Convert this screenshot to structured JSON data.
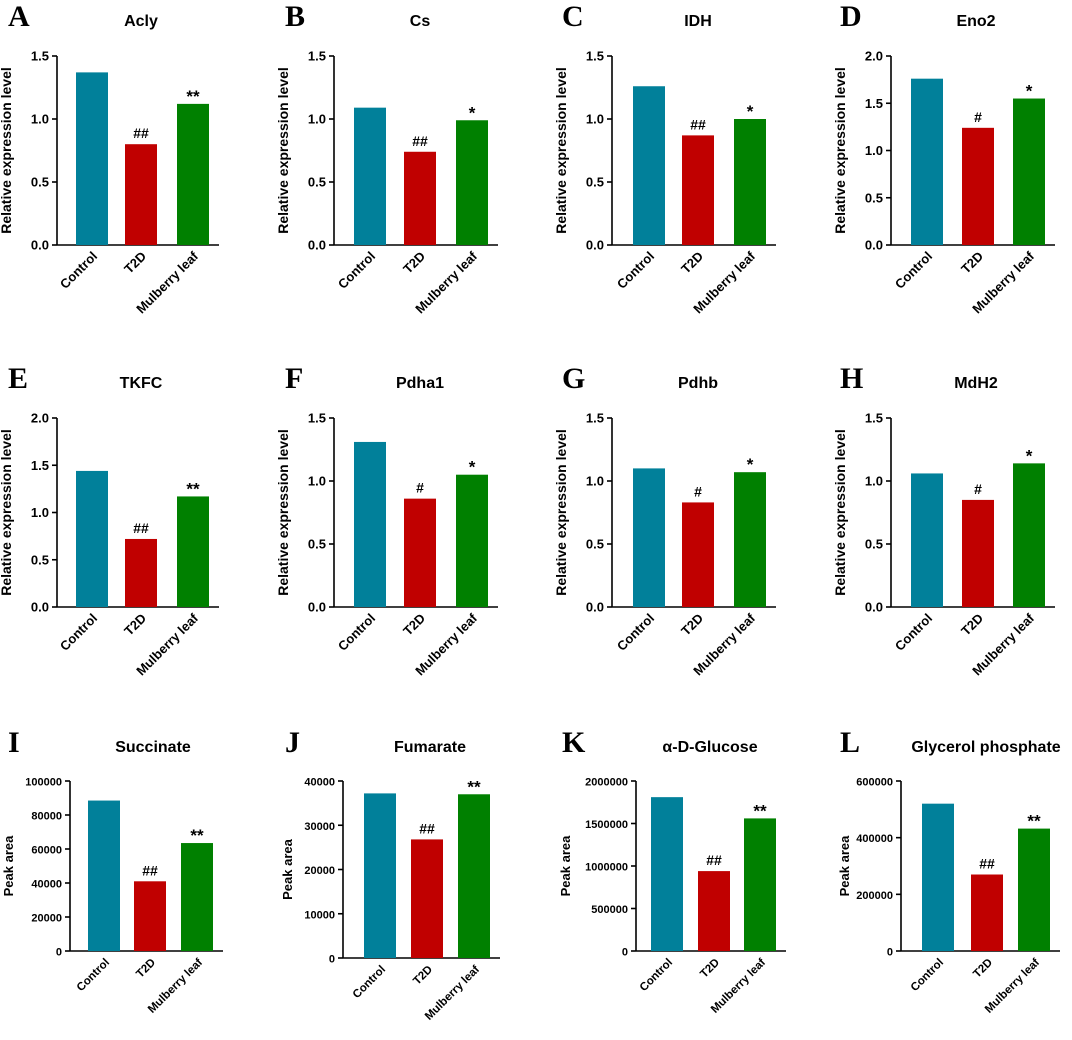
{
  "colors": {
    "control": "#01809a",
    "t2d": "#c00000",
    "mulberry": "#008000"
  },
  "chart_data": [
    {
      "letter": "A",
      "title": "Acly",
      "type": "bar",
      "ylabel": "Relative expression level",
      "ylim": [
        0,
        1.5
      ],
      "yticks": [
        "0.0",
        "0.5",
        "1.0",
        "1.5"
      ],
      "categories": [
        "Control",
        "T2D",
        "Mulberry leaf"
      ],
      "values": [
        1.37,
        0.8,
        1.12
      ],
      "annotations": [
        "",
        "##",
        "**"
      ]
    },
    {
      "letter": "B",
      "title": "Cs",
      "type": "bar",
      "ylabel": "Relative expression level",
      "ylim": [
        0,
        1.5
      ],
      "yticks": [
        "0.0",
        "0.5",
        "1.0",
        "1.5"
      ],
      "categories": [
        "Control",
        "T2D",
        "Mulberry leaf"
      ],
      "values": [
        1.09,
        0.74,
        0.99
      ],
      "annotations": [
        "",
        "##",
        "*"
      ]
    },
    {
      "letter": "C",
      "title": "IDH",
      "type": "bar",
      "ylabel": "Relative expression level",
      "ylim": [
        0,
        1.5
      ],
      "yticks": [
        "0.0",
        "0.5",
        "1.0",
        "1.5"
      ],
      "categories": [
        "Control",
        "T2D",
        "Mulberry leaf"
      ],
      "values": [
        1.26,
        0.87,
        1.0
      ],
      "annotations": [
        "",
        "##",
        "*"
      ]
    },
    {
      "letter": "D",
      "title": "Eno2",
      "type": "bar",
      "ylabel": "Relative expression level",
      "ylim": [
        0,
        2.0
      ],
      "yticks": [
        "0.0",
        "0.5",
        "1.0",
        "1.5",
        "2.0"
      ],
      "categories": [
        "Control",
        "T2D",
        "Mulberry leaf"
      ],
      "values": [
        1.76,
        1.24,
        1.55
      ],
      "annotations": [
        "",
        "#",
        "*"
      ]
    },
    {
      "letter": "E",
      "title": "TKFC",
      "type": "bar",
      "ylabel": "Relative expression level",
      "ylim": [
        0,
        2.0
      ],
      "yticks": [
        "0.0",
        "0.5",
        "1.0",
        "1.5",
        "2.0"
      ],
      "categories": [
        "Control",
        "T2D",
        "Mulberry leaf"
      ],
      "values": [
        1.44,
        0.72,
        1.17
      ],
      "annotations": [
        "",
        "##",
        "**"
      ]
    },
    {
      "letter": "F",
      "title": "Pdha1",
      "type": "bar",
      "ylabel": "Relative expression level",
      "ylim": [
        0,
        1.5
      ],
      "yticks": [
        "0.0",
        "0.5",
        "1.0",
        "1.5"
      ],
      "categories": [
        "Control",
        "T2D",
        "Mulberry leaf"
      ],
      "values": [
        1.31,
        0.86,
        1.05
      ],
      "annotations": [
        "",
        "#",
        "*"
      ]
    },
    {
      "letter": "G",
      "title": "Pdhb",
      "type": "bar",
      "ylabel": "Relative expression level",
      "ylim": [
        0,
        1.5
      ],
      "yticks": [
        "0.0",
        "0.5",
        "1.0",
        "1.5"
      ],
      "categories": [
        "Control",
        "T2D",
        "Mulberry leaf"
      ],
      "values": [
        1.1,
        0.83,
        1.07
      ],
      "annotations": [
        "",
        "#",
        "*"
      ]
    },
    {
      "letter": "H",
      "title": "MdH2",
      "type": "bar",
      "ylabel": "Relative expression level",
      "ylim": [
        0,
        1.5
      ],
      "yticks": [
        "0.0",
        "0.5",
        "1.0",
        "1.5"
      ],
      "categories": [
        "Control",
        "T2D",
        "Mulberry leaf"
      ],
      "values": [
        1.06,
        0.85,
        1.14
      ],
      "annotations": [
        "",
        "#",
        "*"
      ]
    },
    {
      "letter": "I",
      "title": "Succinate",
      "type": "bar",
      "ylabel": "Peak area",
      "ylim": [
        0,
        100000
      ],
      "yticks": [
        "0",
        "20000",
        "40000",
        "60000",
        "80000",
        "100000"
      ],
      "categories": [
        "Control",
        "T2D",
        "Mulberry leaf"
      ],
      "values": [
        88500,
        41000,
        63500
      ],
      "annotations": [
        "",
        "##",
        "**"
      ]
    },
    {
      "letter": "J",
      "title": "Fumarate",
      "type": "bar",
      "ylabel": "Peak area",
      "ylim": [
        0,
        40000
      ],
      "yticks": [
        "0",
        "10000",
        "20000",
        "30000",
        "40000"
      ],
      "categories": [
        "Control",
        "T2D",
        "Mulberry leaf"
      ],
      "values": [
        37200,
        26800,
        37000
      ],
      "annotations": [
        "",
        "##",
        "**"
      ]
    },
    {
      "letter": "K",
      "title": "α-D-Glucose",
      "type": "bar",
      "ylabel": "Peak area",
      "ylim": [
        0,
        2000000
      ],
      "yticks": [
        "0",
        "500000",
        "1000000",
        "1500000",
        "2000000"
      ],
      "categories": [
        "Control",
        "T2D",
        "Mulberry leaf"
      ],
      "values": [
        1810000,
        940000,
        1560000
      ],
      "annotations": [
        "",
        "##",
        "**"
      ]
    },
    {
      "letter": "L",
      "title": "Glycerol phosphate",
      "type": "bar",
      "ylabel": "Peak area",
      "ylim": [
        0,
        600000
      ],
      "yticks": [
        "0",
        "200000",
        "400000",
        "600000"
      ],
      "categories": [
        "Control",
        "T2D",
        "Mulberry leaf"
      ],
      "values": [
        520000,
        270000,
        432000
      ],
      "annotations": [
        "",
        "##",
        "**"
      ]
    }
  ]
}
